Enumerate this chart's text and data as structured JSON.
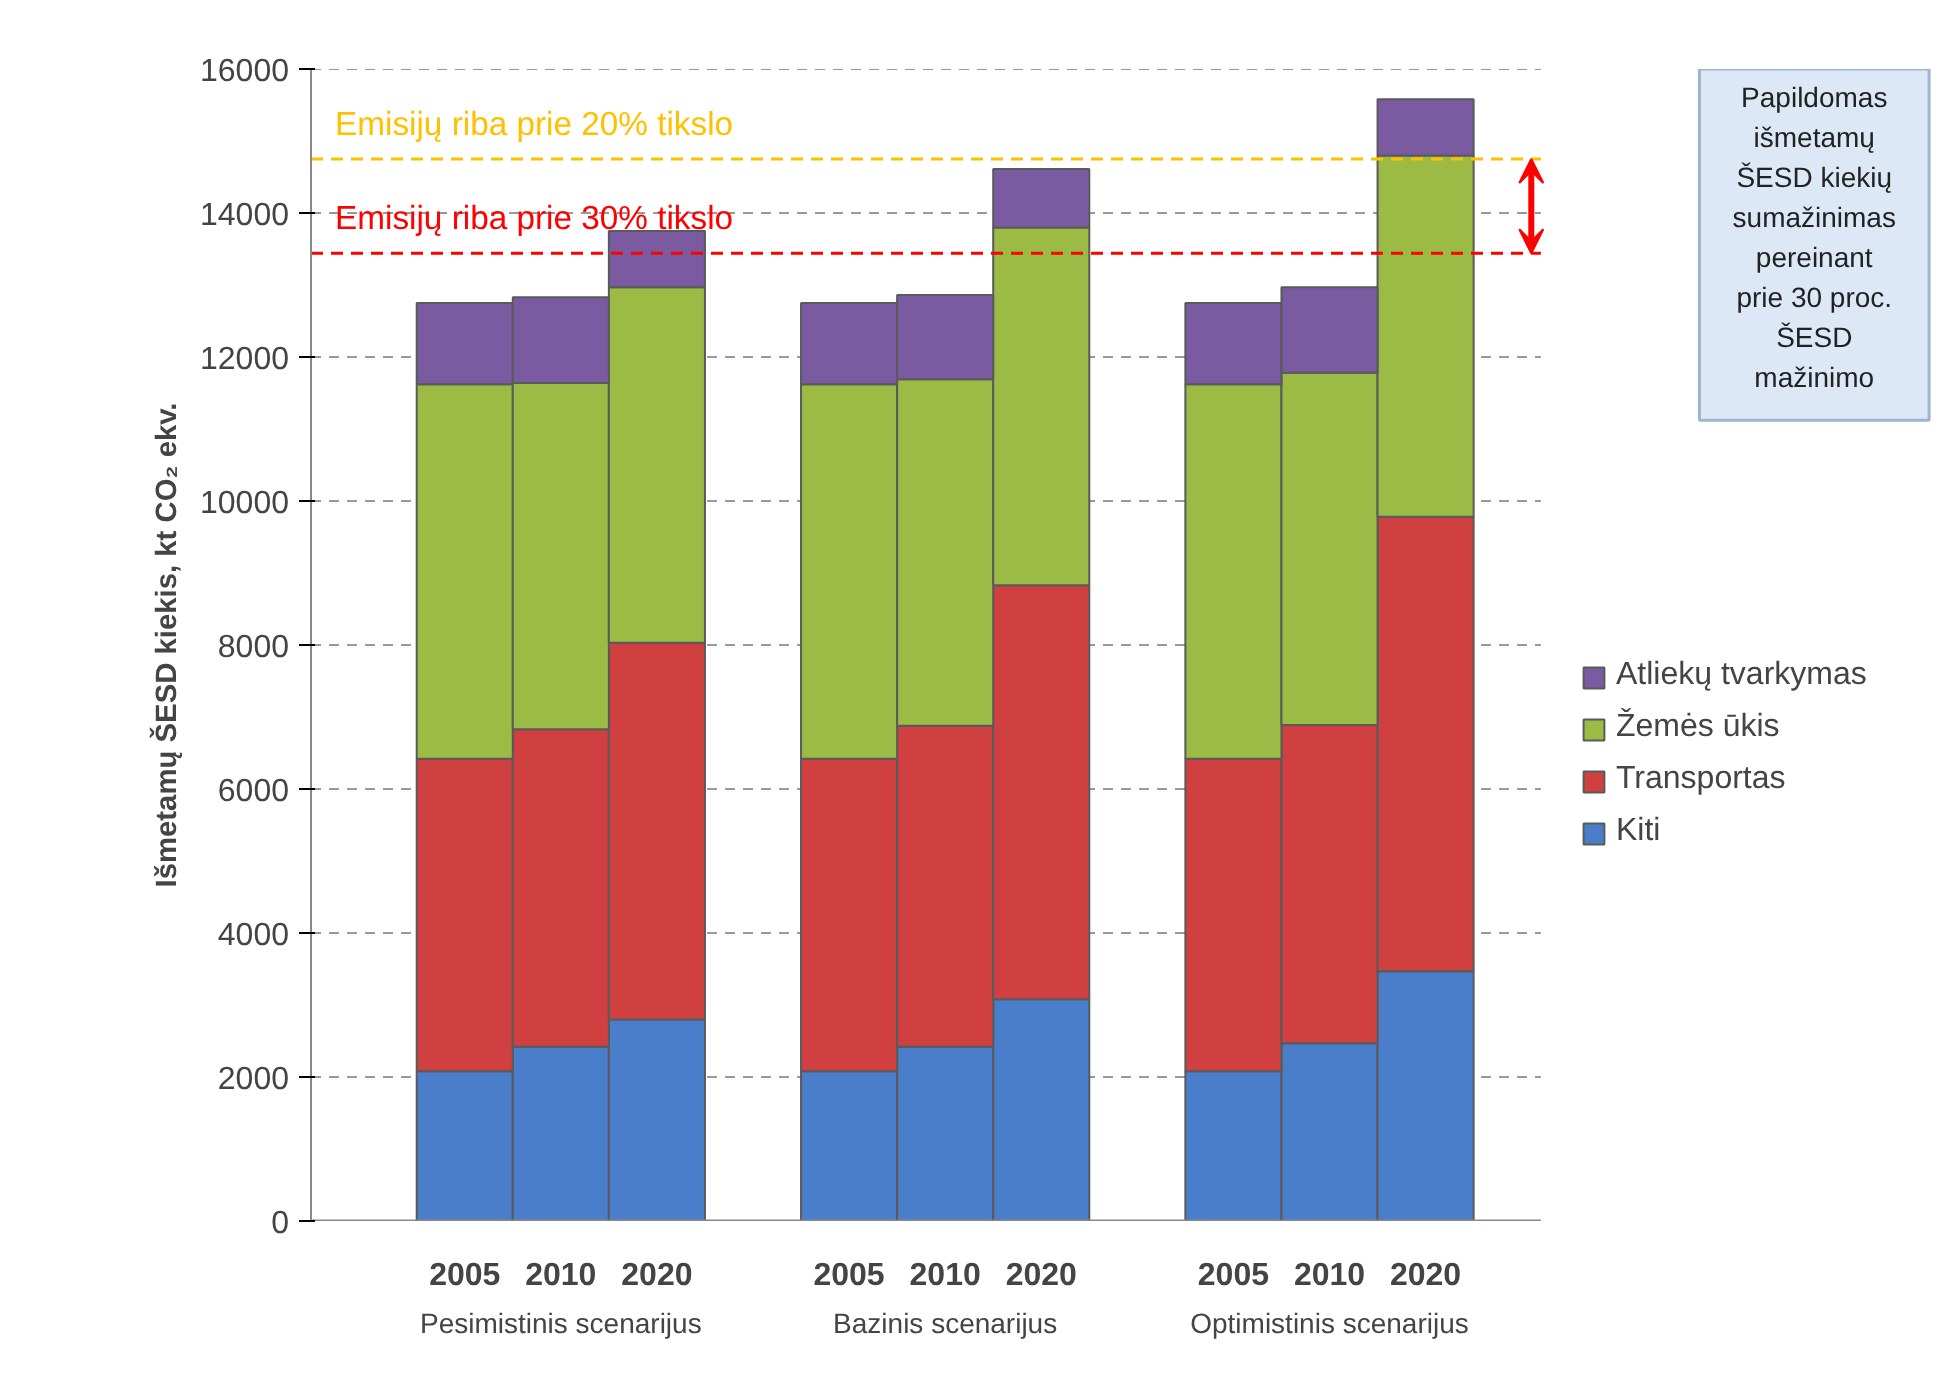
{
  "chart_data": {
    "type": "bar",
    "stacked": true,
    "ylabel": "Išmetamų ŠESD kiekis, kt CO₂ ekv.",
    "categories": [
      "2005",
      "2010",
      "2020",
      "2005",
      "2010",
      "2020",
      "2005",
      "2010",
      "2020"
    ],
    "series": [
      {
        "name": "Kiti",
        "color": "#4a7ecb",
        "values": [
          2080,
          2420,
          2800,
          2080,
          2420,
          3080,
          2080,
          2470,
          3470
        ]
      },
      {
        "name": "Transportas",
        "color": "#d04040",
        "values": [
          4340,
          4410,
          5230,
          4340,
          4460,
          5750,
          4340,
          4420,
          6310
        ]
      },
      {
        "name": "Žemės ūkis",
        "color": "#9bbb45",
        "values": [
          5200,
          4810,
          4940,
          5200,
          4810,
          4970,
          5200,
          4890,
          5020
        ]
      },
      {
        "name": "Atliekų tvarkymas",
        "color": "#7a5aa0",
        "values": [
          1130,
          1190,
          780,
          1130,
          1170,
          810,
          1130,
          1190,
          780
        ]
      }
    ],
    "ylim": [
      0,
      16000
    ],
    "yticks": [
      0,
      2000,
      4000,
      6000,
      8000,
      10000,
      12000,
      14000,
      16000
    ],
    "grid": "y",
    "legend": "right",
    "ref_lines": [
      {
        "axis": "y",
        "value": 14750,
        "label": "Emisijų riba prie 20% tikslo",
        "color": "#ffc000",
        "line_style": "dashed"
      },
      {
        "axis": "y",
        "value": 13440,
        "label": "Emisijų riba prie 30% tikslo",
        "color": "#ff0000",
        "line_style": "dashed"
      }
    ],
    "annotations": [
      "Pesimistinis scenarijus",
      "Bazinis scenarijus",
      "Optimistinis scenarijus",
      "Papildomas\nišmetamų\nŠESD kiekių\nsumažinimas\npereinant\nprie 30 proc.\nŠESD\nmažinimo"
    ]
  }
}
